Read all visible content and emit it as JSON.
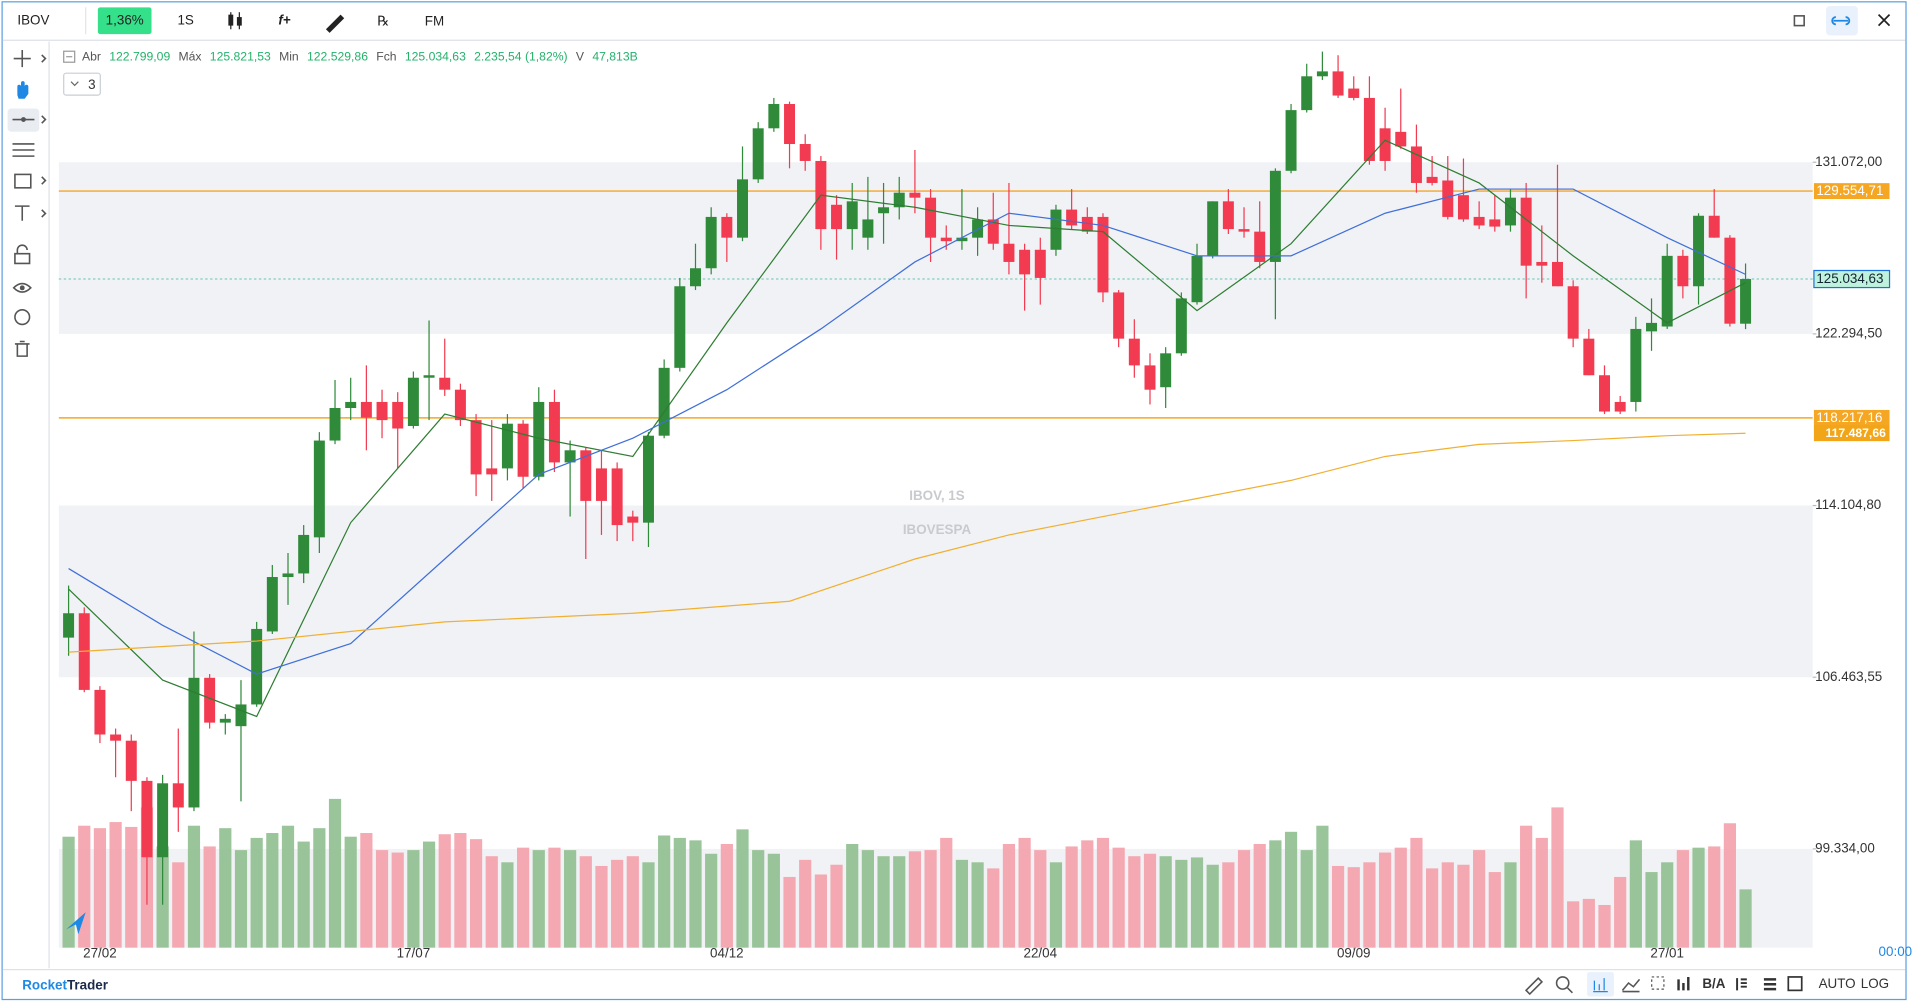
{
  "toolbar": {
    "symbol": "IBOV",
    "change": "1,36%",
    "interval": "1S",
    "buttons": [
      "f+",
      "℞",
      "FM"
    ]
  },
  "legend": [
    {
      "label": "Abr",
      "value": "122.799,09"
    },
    {
      "label": "Máx",
      "value": "125.821,53"
    },
    {
      "label": "Min",
      "value": "122.529,86"
    },
    {
      "label": "Fch",
      "value": "125.034,63"
    },
    {
      "label": "V",
      "value": "47,813B"
    }
  ],
  "legend_change": "2.235,54 (1,82%)",
  "indicator_count": "3",
  "chart_data": {
    "type": "candlestick",
    "title": "IBOV, 1S",
    "subtitle": "IBOVESPA",
    "log_scale": true,
    "up_color": "#2f8a3a",
    "down_color": "#f23a50",
    "volume_up_color": "#8fbf8f",
    "volume_down_color": "#f4a0aa",
    "ylim": [
      95450,
      137690
    ],
    "yticks": [
      {
        "value": 131072,
        "label": "131.072,00"
      },
      {
        "value": 122294.5,
        "label": "122.294,50"
      },
      {
        "value": 114104.8,
        "label": "114.104,80"
      },
      {
        "value": 106463.55,
        "label": "106.463,55"
      },
      {
        "value": 99334,
        "label": "99.334,00"
      }
    ],
    "xticks": [
      {
        "value": 2,
        "label": "27/02"
      },
      {
        "value": 22,
        "label": "17/07"
      },
      {
        "value": 42,
        "label": "04/12"
      },
      {
        "value": 62,
        "label": "22/04"
      },
      {
        "value": 82,
        "label": "09/09"
      },
      {
        "value": 102,
        "label": "27/01"
      }
    ],
    "hlines": [
      {
        "value": 129554.71,
        "label": "129.554,71",
        "color": "#f5a623"
      },
      {
        "value": 118217.16,
        "label": "118.217,16",
        "color": "#f5a623"
      }
    ],
    "last_price_label": "125.034,63",
    "open": [
      108180,
      109250,
      105920,
      104030,
      103770,
      102100,
      99000,
      102000,
      101010,
      106440,
      104530,
      104380,
      105300,
      108450,
      110860,
      111020,
      112650,
      117140,
      118690,
      118980,
      118980,
      118980,
      117830,
      120150,
      120150,
      119570,
      118110,
      115830,
      115830,
      117940,
      115440,
      118980,
      116110,
      116680,
      115830,
      115830,
      113600,
      113320,
      117370,
      120630,
      124670,
      125580,
      128210,
      127140,
      130170,
      132880,
      134190,
      132040,
      131140,
      128840,
      127580,
      127140,
      128400,
      128710,
      129470,
      129210,
      127140,
      126960,
      127140,
      128080,
      126830,
      126520,
      126520,
      126520,
      128590,
      128210,
      128210,
      124360,
      122060,
      120750,
      119690,
      121340,
      123870,
      126210,
      129020,
      127580,
      127450,
      125900,
      130620,
      133860,
      135700,
      135970,
      135030,
      134520,
      132880,
      132690,
      131910,
      130300,
      130110,
      129340,
      128210,
      128080,
      127770,
      129210,
      125900,
      125900,
      124670,
      122060,
      120270,
      118980,
      118980,
      122420,
      122660,
      126210,
      124670,
      128270,
      127140,
      122799.09
    ],
    "high": [
      110480,
      109510,
      106080,
      104280,
      104030,
      102250,
      102350,
      104280,
      108450,
      106600,
      104890,
      106340,
      108870,
      111400,
      111940,
      113210,
      117540,
      120040,
      120150,
      120750,
      119570,
      119450,
      120450,
      122960,
      122060,
      119860,
      118400,
      118110,
      118400,
      118110,
      119690,
      119570,
      117140,
      116800,
      116680,
      116110,
      113870,
      117540,
      121040,
      125090,
      126830,
      128710,
      128400,
      131910,
      133210,
      134520,
      134320,
      132560,
      131400,
      129340,
      129980,
      130300,
      129980,
      130300,
      131720,
      129660,
      127770,
      129660,
      128710,
      129470,
      129980,
      126830,
      127140,
      128840,
      129660,
      128710,
      128400,
      124480,
      123020,
      121340,
      121640,
      124360,
      126830,
      129020,
      129660,
      128710,
      129020,
      130750,
      134190,
      136390,
      137060,
      136860,
      135700,
      135700,
      133990,
      135030,
      133080,
      131400,
      131400,
      131270,
      129020,
      129340,
      129660,
      129980,
      127770,
      130940,
      124970,
      122540,
      120750,
      119270,
      123140,
      124060,
      126830,
      126520,
      128400,
      129660,
      127270,
      125821.53
    ],
    "low": [
      107390,
      105820,
      103670,
      102250,
      100860,
      97120,
      97120,
      100020,
      100860,
      104280,
      104030,
      101260,
      105200,
      108340,
      109620,
      110590,
      111940,
      116970,
      118110,
      116680,
      117250,
      115830,
      117710,
      118110,
      119270,
      117830,
      114540,
      114320,
      115270,
      114880,
      115270,
      115660,
      113600,
      111670,
      112760,
      112480,
      112480,
      112210,
      117250,
      120450,
      124480,
      125270,
      125900,
      126960,
      129980,
      132690,
      130750,
      130620,
      126520,
      126020,
      126520,
      126520,
      126830,
      128080,
      128400,
      125900,
      126520,
      126520,
      126210,
      126520,
      125270,
      123450,
      123750,
      126210,
      127580,
      127330,
      123870,
      121640,
      120150,
      118860,
      118690,
      121220,
      123750,
      126080,
      127330,
      127140,
      125580,
      123020,
      130490,
      133730,
      135500,
      134520,
      134390,
      130940,
      130620,
      131790,
      129470,
      129850,
      128080,
      127960,
      127580,
      127450,
      127450,
      124060,
      124850,
      124670,
      121640,
      120270,
      118400,
      118400,
      118520,
      121460,
      122540,
      124060,
      123750,
      127140,
      122660,
      122529.86
    ],
    "close": [
      109250,
      105920,
      104030,
      103770,
      102100,
      99000,
      102000,
      101010,
      106440,
      104530,
      104690,
      105300,
      108560,
      110860,
      111020,
      112760,
      117140,
      118690,
      118980,
      118230,
      118110,
      117710,
      120150,
      120270,
      119570,
      118110,
      115550,
      115550,
      117940,
      115440,
      118980,
      116110,
      116680,
      114320,
      114320,
      113210,
      113320,
      117370,
      120630,
      124670,
      125580,
      128210,
      127140,
      130170,
      132880,
      134190,
      132040,
      131140,
      127580,
      127580,
      129020,
      128080,
      128710,
      129470,
      129210,
      127140,
      126960,
      127140,
      128080,
      126830,
      125900,
      125270,
      125090,
      128590,
      127770,
      127450,
      124360,
      122060,
      120750,
      119570,
      121340,
      124060,
      126210,
      129020,
      127580,
      127450,
      125900,
      130620,
      133860,
      135700,
      135970,
      134650,
      134520,
      131140,
      131140,
      131910,
      129980,
      129980,
      128210,
      128080,
      127770,
      127710,
      129210,
      125710,
      125710,
      124670,
      122060,
      120270,
      118520,
      118520,
      122540,
      122840,
      126210,
      124670,
      128270,
      127140,
      122800,
      125034.63
    ],
    "volume": [
      91,
      100,
      98,
      103,
      99,
      115,
      83,
      70,
      100,
      83,
      98,
      80,
      90,
      94,
      100,
      87,
      98,
      122,
      91,
      94,
      80,
      78,
      80,
      87,
      93,
      94,
      89,
      75,
      70,
      82,
      80,
      82,
      80,
      75,
      67,
      72,
      75,
      70,
      92,
      90,
      88,
      77,
      85,
      97,
      80,
      77,
      58,
      72,
      60,
      68,
      85,
      80,
      75,
      75,
      79,
      80,
      90,
      72,
      70,
      65,
      85,
      90,
      80,
      70,
      83,
      88,
      90,
      82,
      75,
      77,
      75,
      72,
      74,
      68,
      70,
      80,
      85,
      88,
      95,
      80,
      100,
      67,
      66,
      70,
      78,
      82,
      90,
      65,
      70,
      68,
      80,
      62,
      70,
      100,
      90,
      115,
      38,
      40,
      35,
      58,
      88,
      62,
      70,
      80,
      82,
      83,
      102,
      47.813
    ],
    "moving_averages": [
      {
        "color": "#2e7d32",
        "x": [
          0,
          6,
          12,
          18,
          24,
          30,
          36,
          42,
          48,
          54,
          60,
          66,
          72,
          78,
          84,
          90,
          96,
          102,
          107
        ],
        "values": [
          110320,
          106340,
          104790,
          113320,
          118400,
          117250,
          116390,
          122840,
          129340,
          128710,
          127770,
          127450,
          123450,
          126830,
          132240,
          129980,
          126210,
          122840,
          124850
        ]
      },
      {
        "color": "#3f6fd8",
        "x": [
          0,
          6,
          12,
          18,
          24,
          30,
          36,
          42,
          48,
          54,
          60,
          66,
          72,
          78,
          84,
          90,
          96,
          102,
          107
        ],
        "values": [
          111240,
          108720,
          106600,
          107920,
          111670,
          115550,
          117250,
          119570,
          122540,
          125900,
          128400,
          127770,
          126210,
          126210,
          128400,
          129660,
          129660,
          127140,
          125270
        ]
      },
      {
        "color": "#f0b030",
        "x": [
          0,
          12,
          24,
          36,
          46,
          54,
          60,
          66,
          72,
          78,
          84,
          90,
          96,
          102,
          107
        ],
        "values": [
          107550,
          108030,
          108870,
          109250,
          109780,
          111670,
          112760,
          113600,
          114430,
          115270,
          116390,
          116960,
          117140,
          117370,
          117487.66
        ],
        "end_label": "117.487,66"
      }
    ]
  },
  "footer": {
    "brand_first": "Rocket",
    "brand_second": "Trader",
    "time": "00:00",
    "buttons": [
      "B/A",
      "AUTO",
      "LOG"
    ]
  }
}
